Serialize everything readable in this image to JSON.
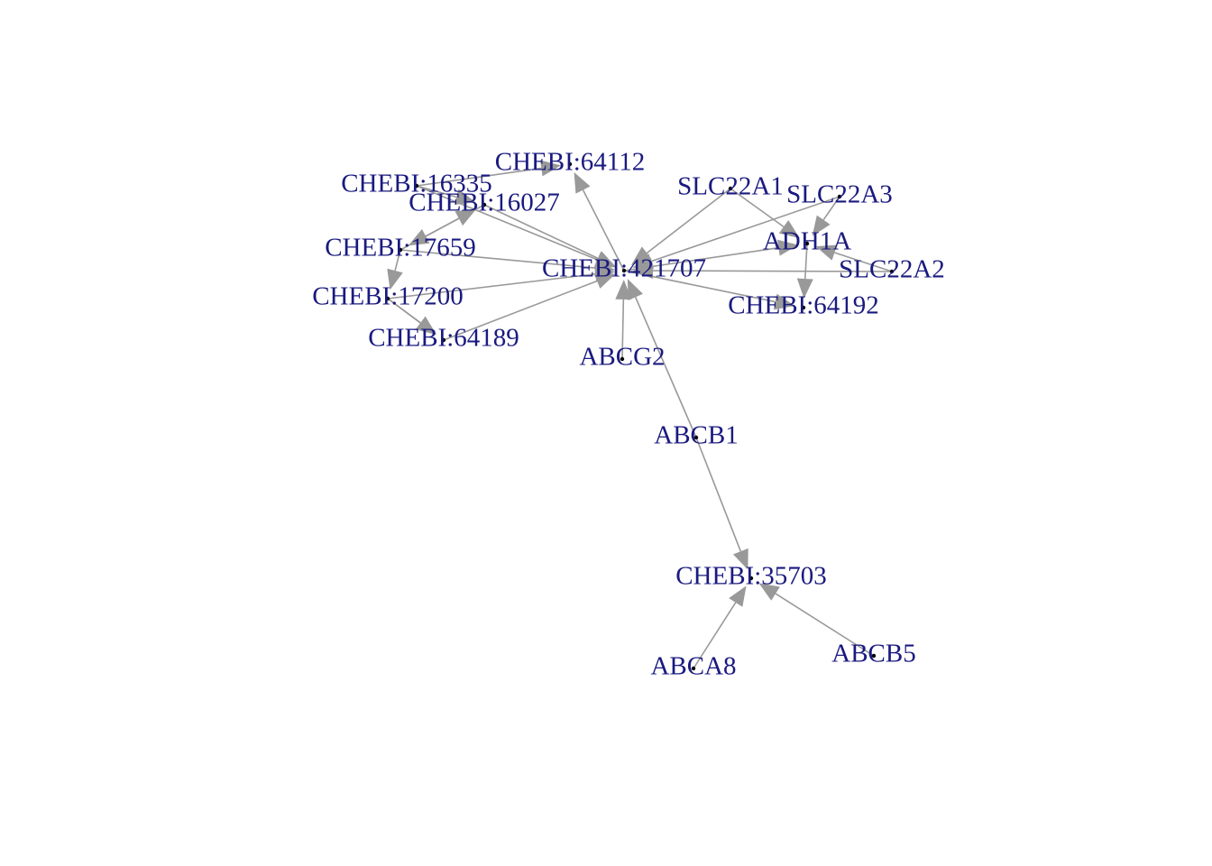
{
  "colors": {
    "edge": "#999999",
    "label": "#1a1a80",
    "vertex": "#000000"
  },
  "nodes": [
    {
      "id": "CHEBI:421707",
      "label": "CHEBI:421707"
    },
    {
      "id": "CHEBI:64112",
      "label": "CHEBI:64112"
    },
    {
      "id": "CHEBI:16335",
      "label": "CHEBI:16335"
    },
    {
      "id": "CHEBI:16027",
      "label": "CHEBI:16027"
    },
    {
      "id": "CHEBI:17659",
      "label": "CHEBI:17659"
    },
    {
      "id": "CHEBI:17200",
      "label": "CHEBI:17200"
    },
    {
      "id": "CHEBI:64189",
      "label": "CHEBI:64189"
    },
    {
      "id": "SLC22A1",
      "label": "SLC22A1"
    },
    {
      "id": "SLC22A3",
      "label": "SLC22A3"
    },
    {
      "id": "ADH1A",
      "label": "ADH1A"
    },
    {
      "id": "SLC22A2",
      "label": "SLC22A2"
    },
    {
      "id": "CHEBI:64192",
      "label": "CHEBI:64192"
    },
    {
      "id": "ABCG2",
      "label": "ABCG2"
    },
    {
      "id": "ABCB1",
      "label": "ABCB1"
    },
    {
      "id": "CHEBI:35703",
      "label": "CHEBI:35703"
    },
    {
      "id": "ABCA8",
      "label": "ABCA8"
    },
    {
      "id": "ABCB5",
      "label": "ABCB5"
    }
  ],
  "edges": [
    {
      "from": "CHEBI:16027",
      "to": "CHEBI:421707"
    },
    {
      "from": "CHEBI:16335",
      "to": "CHEBI:421707"
    },
    {
      "from": "CHEBI:17659",
      "to": "CHEBI:421707"
    },
    {
      "from": "CHEBI:17200",
      "to": "CHEBI:421707"
    },
    {
      "from": "CHEBI:64189",
      "to": "CHEBI:421707"
    },
    {
      "from": "CHEBI:421707",
      "to": "CHEBI:64112"
    },
    {
      "from": "SLC22A1",
      "to": "CHEBI:421707"
    },
    {
      "from": "SLC22A3",
      "to": "CHEBI:421707"
    },
    {
      "from": "SLC22A2",
      "to": "CHEBI:421707"
    },
    {
      "from": "CHEBI:421707",
      "to": "ADH1A"
    },
    {
      "from": "CHEBI:421707",
      "to": "CHEBI:64192"
    },
    {
      "from": "ABCG2",
      "to": "CHEBI:421707"
    },
    {
      "from": "ABCB1",
      "to": "CHEBI:421707"
    },
    {
      "from": "SLC22A1",
      "to": "ADH1A"
    },
    {
      "from": "SLC22A3",
      "to": "ADH1A"
    },
    {
      "from": "SLC22A2",
      "to": "ADH1A"
    },
    {
      "from": "ADH1A",
      "to": "CHEBI:64192"
    },
    {
      "from": "CHEBI:16335",
      "to": "CHEBI:64112"
    },
    {
      "from": "CHEBI:16335",
      "to": "CHEBI:16027"
    },
    {
      "from": "CHEBI:17659",
      "to": "CHEBI:16027"
    },
    {
      "from": "CHEBI:16027",
      "to": "CHEBI:17659"
    },
    {
      "from": "CHEBI:17659",
      "to": "CHEBI:17200"
    },
    {
      "from": "CHEBI:17200",
      "to": "CHEBI:64189"
    },
    {
      "from": "CHEBI:17200",
      "to": "CHEBI:64189"
    },
    {
      "from": "ABCB1",
      "to": "CHEBI:35703"
    },
    {
      "from": "ABCA8",
      "to": "CHEBI:35703"
    },
    {
      "from": "ABCB5",
      "to": "CHEBI:35703"
    }
  ]
}
